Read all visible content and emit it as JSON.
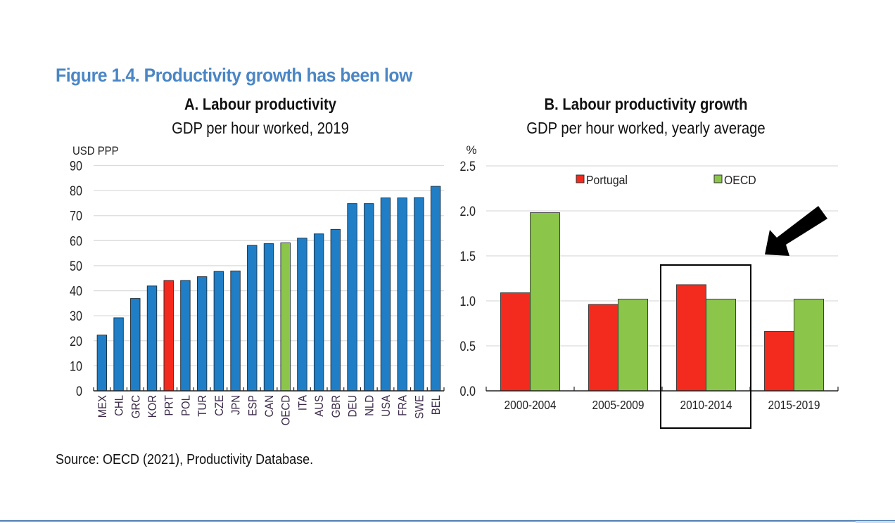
{
  "figure": {
    "title": "Figure 1.4. Productivity growth has been low",
    "source": "Source: OECD (2021), Productivity Database.",
    "accent_color": "#4a86c5"
  },
  "annotation": {
    "highlight_box_category": "2010-2014",
    "arrow": "black arrow pointing to 2010-2014 group"
  },
  "chart_data": [
    {
      "type": "bar",
      "title": "A. Labour productivity",
      "subtitle": "GDP per hour worked, 2019",
      "xlabel": "",
      "ylabel": "USD PPP",
      "ylim": [
        0,
        90
      ],
      "yticks": [
        "0",
        "10",
        "20",
        "30",
        "40",
        "50",
        "60",
        "70",
        "80",
        "90"
      ],
      "ytick_values": [
        0,
        10,
        20,
        30,
        40,
        50,
        60,
        70,
        80,
        90
      ],
      "grid": true,
      "categories": [
        "MEX",
        "CHL",
        "GRC",
        "KOR",
        "PRT",
        "POL",
        "TUR",
        "CZE",
        "JPN",
        "ESP",
        "CAN",
        "OECD",
        "ITA",
        "AUS",
        "GBR",
        "DEU",
        "NLD",
        "USA",
        "FRA",
        "SWE",
        "BEL"
      ],
      "values": [
        22.3,
        29.2,
        36.9,
        41.9,
        44.1,
        44.1,
        45.6,
        47.7,
        47.9,
        58.1,
        58.8,
        59.1,
        61.0,
        62.7,
        64.5,
        74.8,
        74.8,
        77.1,
        77.1,
        77.2,
        81.7
      ],
      "highlight": {
        "PRT": "#f22b1e",
        "OECD": "#8bc64a"
      },
      "bar_color": "#1f7ec6"
    },
    {
      "type": "bar",
      "title": "B. Labour productivity growth",
      "subtitle": "GDP per hour worked, yearly average",
      "xlabel": "",
      "ylabel": "%",
      "ylim": [
        0,
        2.5
      ],
      "yticks": [
        "0.0",
        "0.5",
        "1.0",
        "1.5",
        "2.0",
        "2.5"
      ],
      "ytick_values": [
        0,
        0.5,
        1.0,
        1.5,
        2.0,
        2.5
      ],
      "grid": true,
      "legend_position": "top",
      "categories": [
        "2000-2004",
        "2005-2009",
        "2010-2014",
        "2015-2019"
      ],
      "series": [
        {
          "name": "Portugal",
          "color": "#f22b1e",
          "values": [
            1.09,
            0.96,
            1.18,
            0.66
          ]
        },
        {
          "name": "OECD",
          "color": "#8bc64a",
          "values": [
            1.98,
            1.02,
            1.02,
            1.02
          ]
        }
      ]
    }
  ]
}
